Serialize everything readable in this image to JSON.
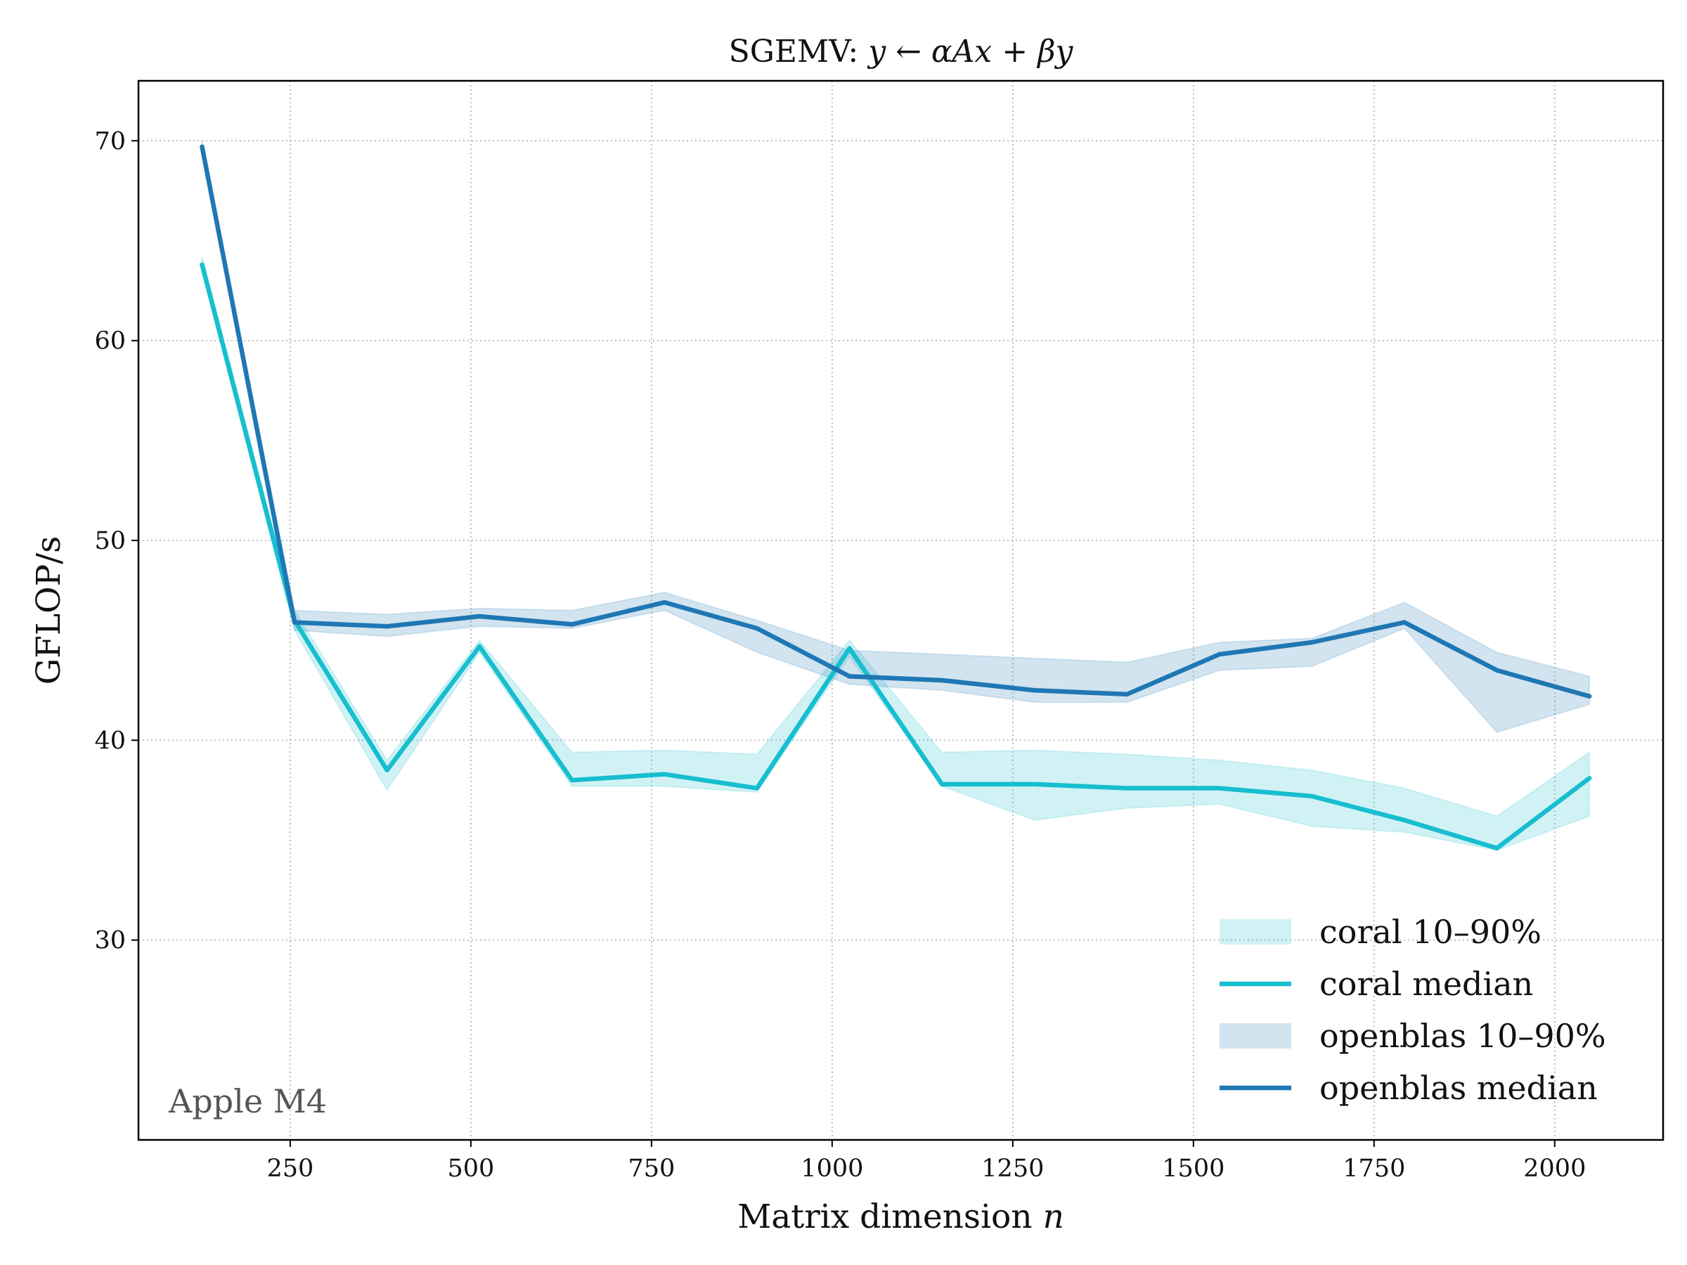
{
  "chart_data": {
    "type": "line",
    "title": "SGEMV: y ← αAx + βy",
    "xlabel": "Matrix dimension n",
    "ylabel": "GFLOP/s",
    "annotation": "Apple M4",
    "xlim": [
      40,
      2150
    ],
    "ylim": [
      20,
      73
    ],
    "x_ticks": [
      250,
      500,
      750,
      1000,
      1250,
      1500,
      1750,
      2000
    ],
    "y_ticks": [
      30,
      40,
      50,
      60,
      70
    ],
    "grid": true,
    "legend_position": "bottom-right",
    "x": [
      128,
      256,
      384,
      512,
      640,
      768,
      896,
      1024,
      1152,
      1280,
      1408,
      1536,
      1664,
      1792,
      1920,
      2048
    ],
    "series": [
      {
        "name": "coral median",
        "color": "#17becf",
        "values": [
          63.8,
          46.0,
          38.5,
          44.7,
          38.0,
          38.3,
          37.6,
          44.6,
          37.8,
          37.8,
          37.6,
          37.6,
          37.2,
          36.0,
          34.6,
          38.1
        ]
      },
      {
        "name": "openblas median",
        "color": "#1f77b4",
        "values": [
          69.7,
          45.9,
          45.7,
          46.2,
          45.8,
          46.9,
          45.6,
          43.2,
          43.0,
          42.5,
          42.3,
          44.3,
          44.9,
          45.9,
          43.5,
          42.2
        ]
      }
    ],
    "bands": [
      {
        "name": "coral 10–90%",
        "color": "#17becf",
        "lower": [
          63.5,
          45.5,
          37.5,
          44.4,
          37.7,
          37.7,
          37.4,
          44.2,
          37.7,
          36.0,
          36.6,
          36.8,
          35.7,
          35.4,
          34.5,
          36.2
        ],
        "upper": [
          64.2,
          46.5,
          39.0,
          45.0,
          39.4,
          39.5,
          39.3,
          45.0,
          39.4,
          39.5,
          39.3,
          39.0,
          38.5,
          37.6,
          36.2,
          39.4
        ]
      },
      {
        "name": "openblas 10–90%",
        "color": "#1f77b4",
        "lower": [
          69.4,
          45.5,
          45.2,
          45.7,
          45.6,
          46.5,
          44.4,
          42.8,
          42.5,
          41.9,
          41.9,
          43.5,
          43.7,
          45.6,
          40.4,
          41.8
        ],
        "upper": [
          70.0,
          46.5,
          46.3,
          46.6,
          46.5,
          47.4,
          46.0,
          44.5,
          44.3,
          44.1,
          43.9,
          44.9,
          45.1,
          46.9,
          44.4,
          43.2
        ]
      }
    ],
    "legend": [
      {
        "label": "coral 10–90%",
        "kind": "band",
        "color": "#17becf"
      },
      {
        "label": "coral median",
        "kind": "line",
        "color": "#17becf"
      },
      {
        "label": "openblas 10–90%",
        "kind": "band",
        "color": "#1f77b4"
      },
      {
        "label": "openblas median",
        "kind": "line",
        "color": "#1f77b4"
      }
    ]
  }
}
